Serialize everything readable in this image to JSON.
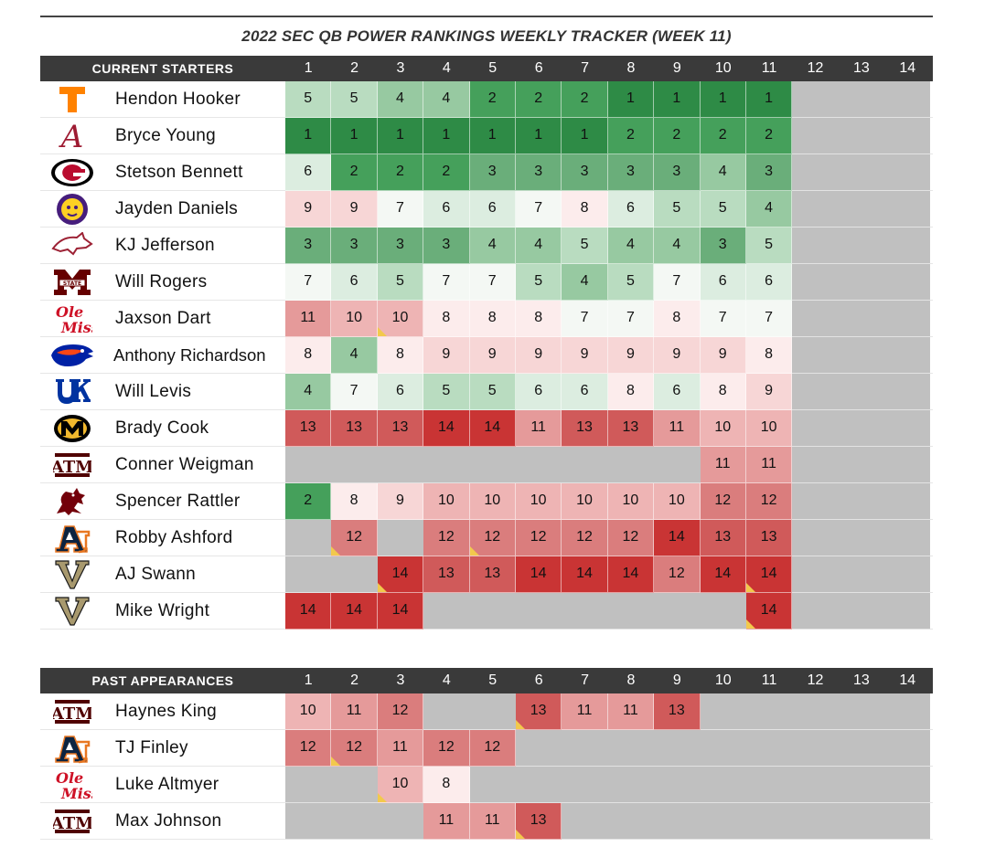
{
  "title": "2022 SEC QB POWER RANKINGS WEEKLY TRACKER (WEEK 11)",
  "weeks": [
    "1",
    "2",
    "3",
    "4",
    "5",
    "6",
    "7",
    "8",
    "9",
    "10",
    "11",
    "12",
    "13",
    "14"
  ],
  "colors": {
    "1": "#2e8b46",
    "2": "#45a05b",
    "3": "#6aae7a",
    "4": "#97c9a1",
    "5": "#b9dcc0",
    "6": "#dcede0",
    "7": "#f4f8f4",
    "8": "#fcecec",
    "9": "#f7d6d6",
    "10": "#eeb4b4",
    "11": "#e59a9a",
    "12": "#da7d7d",
    "13": "#d05a5a",
    "14": "#c93434",
    "empty": "#c0c0c0",
    "header": "#3a3a3a",
    "flag": "#f2c94c"
  },
  "current": {
    "label": "CURRENT STARTERS",
    "players": [
      {
        "name": "Hendon Hooker",
        "logo": "tennessee-logo-icon",
        "ranks": [
          "5",
          "5",
          "4",
          "4",
          "2",
          "2",
          "2",
          "1",
          "1",
          "1",
          "1",
          "",
          "",
          ""
        ],
        "flags": []
      },
      {
        "name": "Bryce Young",
        "logo": "alabama-logo-icon",
        "ranks": [
          "1",
          "1",
          "1",
          "1",
          "1",
          "1",
          "1",
          "2",
          "2",
          "2",
          "2",
          "",
          "",
          ""
        ],
        "flags": []
      },
      {
        "name": "Stetson Bennett",
        "logo": "georgia-logo-icon",
        "ranks": [
          "6",
          "2",
          "2",
          "2",
          "3",
          "3",
          "3",
          "3",
          "3",
          "4",
          "3",
          "",
          "",
          ""
        ],
        "flags": []
      },
      {
        "name": "Jayden Daniels",
        "logo": "lsu-logo-icon",
        "ranks": [
          "9",
          "9",
          "7",
          "6",
          "6",
          "7",
          "8",
          "6",
          "5",
          "5",
          "4",
          "",
          "",
          ""
        ],
        "flags": []
      },
      {
        "name": "KJ Jefferson",
        "logo": "arkansas-logo-icon",
        "ranks": [
          "3",
          "3",
          "3",
          "3",
          "4",
          "4",
          "5",
          "4",
          "4",
          "3",
          "5",
          "",
          "",
          ""
        ],
        "flags": []
      },
      {
        "name": "Will Rogers",
        "logo": "mississippi-state-logo-icon",
        "ranks": [
          "7",
          "6",
          "5",
          "7",
          "7",
          "5",
          "4",
          "5",
          "7",
          "6",
          "6",
          "",
          "",
          ""
        ],
        "flags": []
      },
      {
        "name": "Jaxson Dart",
        "logo": "ole-miss-logo-icon",
        "ranks": [
          "11",
          "10",
          "10",
          "8",
          "8",
          "8",
          "7",
          "7",
          "8",
          "7",
          "7",
          "",
          "",
          ""
        ],
        "flags": [
          2
        ]
      },
      {
        "name": "Anthony Richardson",
        "logo": "florida-logo-icon",
        "ranks": [
          "8",
          "4",
          "8",
          "9",
          "9",
          "9",
          "9",
          "9",
          "9",
          "9",
          "8",
          "",
          "",
          ""
        ],
        "flags": []
      },
      {
        "name": "Will Levis",
        "logo": "kentucky-logo-icon",
        "ranks": [
          "4",
          "7",
          "6",
          "5",
          "5",
          "6",
          "6",
          "8",
          "6",
          "8",
          "9",
          "",
          "",
          ""
        ],
        "flags": []
      },
      {
        "name": "Brady Cook",
        "logo": "missouri-logo-icon",
        "ranks": [
          "13",
          "13",
          "13",
          "14",
          "14",
          "11",
          "13",
          "13",
          "11",
          "10",
          "10",
          "",
          "",
          ""
        ],
        "flags": []
      },
      {
        "name": "Conner Weigman",
        "logo": "texas-am-logo-icon",
        "ranks": [
          "",
          "",
          "",
          "",
          "",
          "",
          "",
          "",
          "",
          "11",
          "11",
          "",
          "",
          ""
        ],
        "flags": []
      },
      {
        "name": "Spencer Rattler",
        "logo": "south-carolina-logo-icon",
        "ranks": [
          "2",
          "8",
          "9",
          "10",
          "10",
          "10",
          "10",
          "10",
          "10",
          "12",
          "12",
          "",
          "",
          ""
        ],
        "flags": []
      },
      {
        "name": "Robby Ashford",
        "logo": "auburn-logo-icon",
        "ranks": [
          "",
          "12",
          "",
          "12",
          "12",
          "12",
          "12",
          "12",
          "14",
          "13",
          "13",
          "",
          "",
          ""
        ],
        "flags": [
          1,
          4
        ]
      },
      {
        "name": "AJ Swann",
        "logo": "vanderbilt-logo-icon",
        "ranks": [
          "",
          "",
          "14",
          "13",
          "13",
          "14",
          "14",
          "14",
          "12",
          "14",
          "14",
          "",
          "",
          ""
        ],
        "flags": [
          2,
          10
        ]
      },
      {
        "name": "Mike Wright",
        "logo": "vanderbilt-logo-icon",
        "ranks": [
          "14",
          "14",
          "14",
          "",
          "",
          "",
          "",
          "",
          "",
          "",
          "14",
          "",
          "",
          ""
        ],
        "flags": [
          10
        ]
      }
    ]
  },
  "past": {
    "label": "PAST APPEARANCES",
    "players": [
      {
        "name": "Haynes King",
        "logo": "texas-am-logo-icon",
        "ranks": [
          "10",
          "11",
          "12",
          "",
          "",
          "13",
          "11",
          "11",
          "13",
          "",
          "",
          "",
          "",
          ""
        ],
        "flags": [
          5
        ]
      },
      {
        "name": "TJ Finley",
        "logo": "auburn-logo-icon",
        "ranks": [
          "12",
          "12",
          "11",
          "12",
          "12",
          "",
          "",
          "",
          "",
          "",
          "",
          "",
          "",
          ""
        ],
        "flags": [
          1
        ]
      },
      {
        "name": "Luke Altmyer",
        "logo": "ole-miss-logo-icon",
        "ranks": [
          "",
          "",
          "10",
          "8",
          "",
          "",
          "",
          "",
          "",
          "",
          "",
          "",
          "",
          ""
        ],
        "flags": [
          2
        ]
      },
      {
        "name": "Max Johnson",
        "logo": "texas-am-logo-icon",
        "ranks": [
          "",
          "",
          "",
          "11",
          "11",
          "13",
          "",
          "",
          "",
          "",
          "",
          "",
          "",
          ""
        ],
        "flags": [
          5
        ]
      }
    ]
  }
}
